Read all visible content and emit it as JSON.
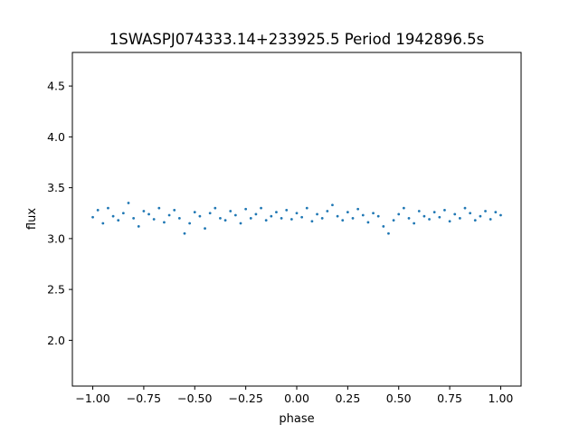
{
  "chart_data": {
    "type": "scatter",
    "title": "1SWASPJ074333.14+233925.5 Period 1942896.5s",
    "xlabel": "phase",
    "ylabel": "flux",
    "xlim": [
      -1.1,
      1.1
    ],
    "ylim": [
      1.55,
      4.83
    ],
    "grid": false,
    "legend": "none",
    "x_ticks": [
      -1.0,
      -0.75,
      -0.5,
      -0.25,
      0.0,
      0.25,
      0.5,
      0.75,
      1.0
    ],
    "x_tick_labels": [
      "−1.00",
      "−0.75",
      "−0.50",
      "−0.25",
      "0.00",
      "0.25",
      "0.50",
      "0.75",
      "1.00"
    ],
    "y_ticks": [
      2.0,
      2.5,
      3.0,
      3.5,
      4.0,
      4.5
    ],
    "y_tick_labels": [
      "2.0",
      "2.5",
      "3.0",
      "3.5",
      "4.0",
      "4.5"
    ],
    "marker_color": "#1f77b4",
    "series": [
      {
        "x": [
          -1.0,
          -0.975,
          -0.95,
          -0.925,
          -0.9,
          -0.875,
          -0.85,
          -0.825,
          -0.8,
          -0.775,
          -0.75,
          -0.725,
          -0.7,
          -0.675,
          -0.65,
          -0.625,
          -0.6,
          -0.575,
          -0.55,
          -0.525,
          -0.5,
          -0.475,
          -0.45,
          -0.425,
          -0.4,
          -0.375,
          -0.35,
          -0.325,
          -0.3,
          -0.275,
          -0.25,
          -0.225,
          -0.2,
          -0.175,
          -0.15,
          -0.125,
          -0.1,
          -0.075,
          -0.05,
          -0.025,
          0.0,
          0.025,
          0.05,
          0.075,
          0.1,
          0.125,
          0.15,
          0.175,
          0.2,
          0.225,
          0.25,
          0.275,
          0.3,
          0.325,
          0.35,
          0.375,
          0.4,
          0.425,
          0.45,
          0.475,
          0.5,
          0.525,
          0.55,
          0.575,
          0.6,
          0.625,
          0.65,
          0.675,
          0.7,
          0.725,
          0.75,
          0.775,
          0.8,
          0.825,
          0.85,
          0.875,
          0.9,
          0.925,
          0.95,
          0.975,
          1.0
        ],
        "y": [
          3.21,
          3.28,
          3.15,
          3.3,
          3.22,
          3.18,
          3.25,
          3.35,
          3.2,
          3.12,
          3.27,
          3.24,
          3.19,
          3.3,
          3.16,
          3.23,
          3.28,
          3.2,
          3.05,
          3.15,
          3.26,
          3.22,
          3.1,
          3.25,
          3.3,
          3.2,
          3.18,
          3.27,
          3.23,
          3.15,
          3.29,
          3.2,
          3.24,
          3.3,
          3.18,
          3.22,
          3.26,
          3.2,
          3.28,
          3.19,
          3.25,
          3.21,
          3.3,
          3.17,
          3.24,
          3.2,
          3.27,
          3.33,
          3.22,
          3.18,
          3.26,
          3.2,
          3.29,
          3.23,
          3.16,
          3.25,
          3.22,
          3.12,
          3.05,
          3.18,
          3.24,
          3.3,
          3.2,
          3.15,
          3.27,
          3.22,
          3.19,
          3.26,
          3.21,
          3.28,
          3.17,
          3.24,
          3.2,
          3.3,
          3.25,
          3.18,
          3.22,
          3.27,
          3.19,
          3.26,
          3.23
        ]
      }
    ]
  }
}
